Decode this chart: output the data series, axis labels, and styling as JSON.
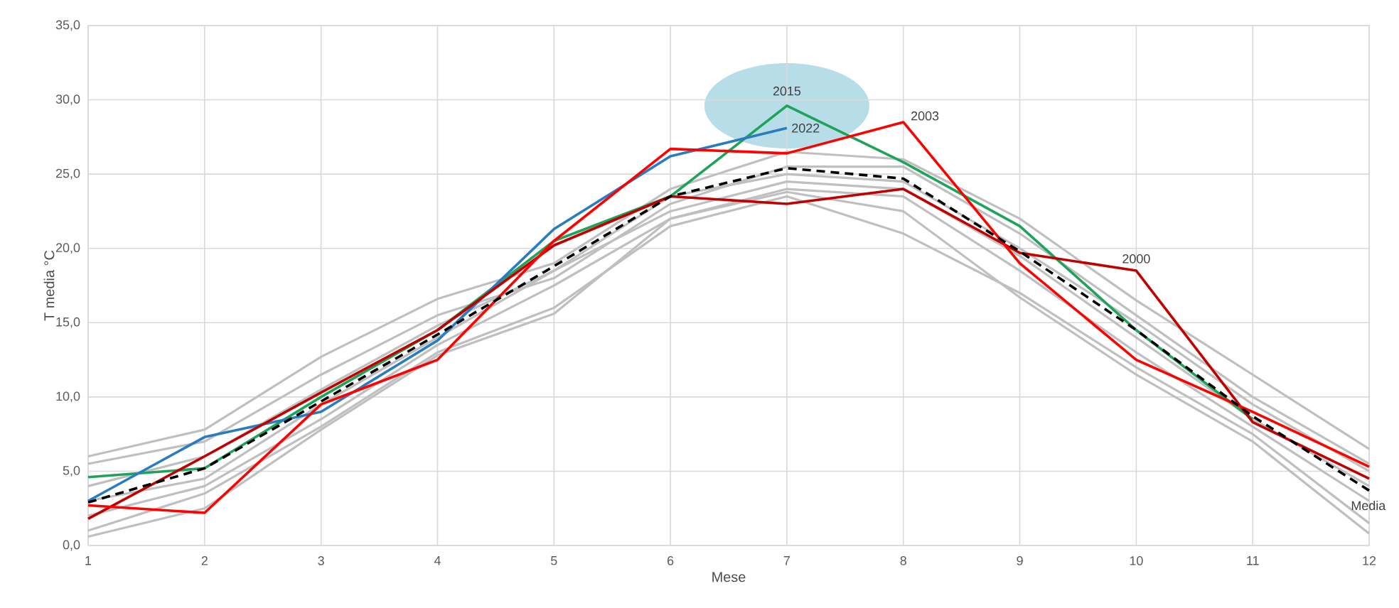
{
  "chart_data": {
    "type": "line",
    "xlabel": "Mese",
    "ylabel": "T media °C",
    "xlim": [
      1,
      12
    ],
    "xticks": [
      1,
      2,
      3,
      4,
      5,
      6,
      7,
      8,
      9,
      10,
      11,
      12
    ],
    "ylim": [
      0,
      35
    ],
    "yticks": [
      {
        "value": 0,
        "label": "0,0"
      },
      {
        "value": 5,
        "label": "5,0"
      },
      {
        "value": 10,
        "label": "10,0"
      },
      {
        "value": 15,
        "label": "15,0"
      },
      {
        "value": 20,
        "label": "20,0"
      },
      {
        "value": 25,
        "label": "25,0"
      },
      {
        "value": 30,
        "label": "30,0"
      },
      {
        "value": 35,
        "label": "35,0"
      }
    ],
    "grid": true,
    "x": [
      1,
      2,
      3,
      4,
      5,
      6,
      7,
      8,
      9,
      10,
      11,
      12
    ],
    "series": [
      {
        "color": "#bfbfbf",
        "values": [
          6.0,
          7.8,
          12.7,
          16.6,
          19.0,
          24.0,
          26.5,
          26.0,
          22.0,
          16.5,
          11.5,
          6.5
        ]
      },
      {
        "color": "#bfbfbf",
        "values": [
          5.5,
          7.0,
          11.5,
          15.5,
          18.0,
          23.0,
          25.5,
          25.5,
          21.0,
          15.5,
          10.0,
          5.5
        ]
      },
      {
        "color": "#bfbfbf",
        "values": [
          4.0,
          6.0,
          10.5,
          14.8,
          18.5,
          23.5,
          25.0,
          24.5,
          20.0,
          15.0,
          9.5,
          5.0
        ]
      },
      {
        "color": "#bfbfbf",
        "values": [
          3.0,
          4.5,
          9.5,
          14.0,
          18.5,
          22.5,
          24.5,
          24.0,
          19.5,
          14.0,
          8.5,
          4.0
        ]
      },
      {
        "color": "#bfbfbf",
        "values": [
          2.0,
          4.0,
          8.5,
          13.5,
          17.5,
          22.0,
          24.0,
          23.5,
          18.5,
          13.0,
          8.0,
          3.0
        ]
      },
      {
        "color": "#bfbfbf",
        "values": [
          1.0,
          3.5,
          8.0,
          13.0,
          16.0,
          21.5,
          23.5,
          21.0,
          17.0,
          12.0,
          7.5,
          1.5
        ]
      },
      {
        "color": "#bfbfbf",
        "values": [
          0.6,
          2.5,
          7.8,
          12.8,
          15.6,
          22.0,
          23.8,
          22.5,
          16.7,
          11.5,
          7.0,
          0.8
        ]
      },
      {
        "name": "2015",
        "color": "#1fa35b",
        "values": [
          4.6,
          5.2,
          10.0,
          14.5,
          20.5,
          23.5,
          29.6,
          25.8,
          21.5,
          14.5,
          8.5,
          null
        ]
      },
      {
        "name": "2022",
        "color": "#2a7cc1",
        "values": [
          3.0,
          7.3,
          9.0,
          13.8,
          21.3,
          26.2,
          28.1,
          null,
          null,
          null,
          null,
          null
        ]
      },
      {
        "name": "2000",
        "color": "#c00000",
        "values": [
          1.8,
          6.0,
          10.3,
          14.5,
          20.2,
          23.5,
          23.0,
          24.0,
          19.7,
          18.5,
          8.3,
          4.5
        ]
      },
      {
        "name": "2003",
        "color": "#ff0000",
        "values": [
          2.7,
          2.2,
          9.5,
          12.5,
          20.5,
          26.7,
          26.4,
          28.5,
          19.0,
          12.5,
          9.0,
          5.3
        ]
      },
      {
        "name": "Media",
        "color": "#000000",
        "line_style": "dashed",
        "values": [
          2.9,
          5.2,
          9.7,
          14.2,
          18.8,
          23.5,
          25.4,
          24.7,
          19.8,
          14.5,
          8.7,
          3.7
        ]
      }
    ]
  }
}
